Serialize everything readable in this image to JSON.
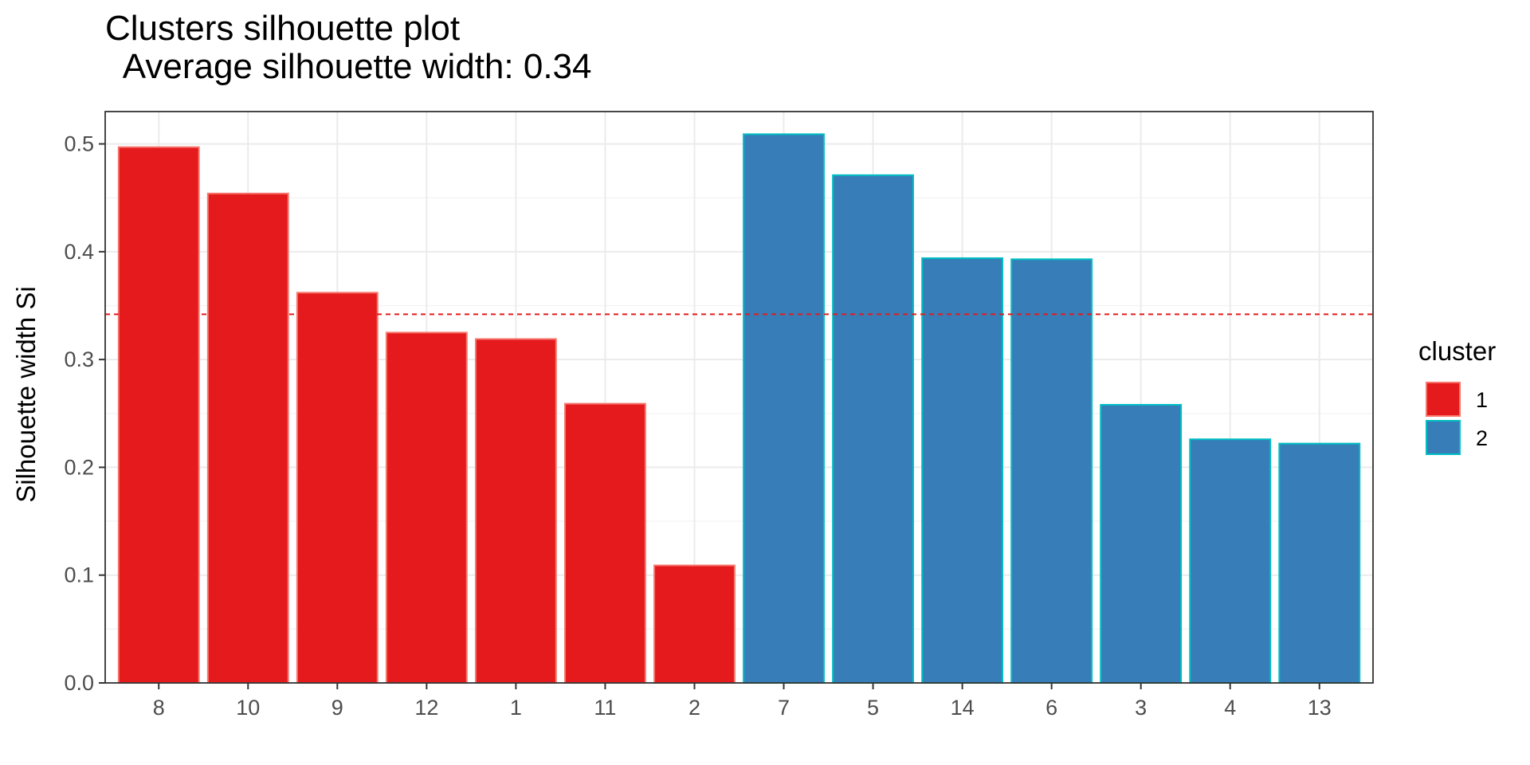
{
  "title": "Clusters silhouette plot",
  "subtitle": " Average silhouette width: 0.34",
  "chart_data": {
    "type": "bar",
    "title": "Clusters silhouette plot",
    "subtitle": " Average silhouette width: 0.34",
    "xlabel": "",
    "ylabel": "Silhouette width Si",
    "ylim": [
      0,
      0.53
    ],
    "yticks": [
      "0.0",
      "0.1",
      "0.2",
      "0.3",
      "0.4",
      "0.5"
    ],
    "grid": true,
    "categories": [
      "8",
      "10",
      "9",
      "12",
      "1",
      "11",
      "2",
      "7",
      "5",
      "14",
      "6",
      "3",
      "4",
      "13"
    ],
    "values": [
      0.497,
      0.454,
      0.362,
      0.325,
      0.319,
      0.259,
      0.109,
      0.509,
      0.471,
      0.394,
      0.393,
      0.258,
      0.226,
      0.222
    ],
    "cluster": [
      "1",
      "1",
      "1",
      "1",
      "1",
      "1",
      "1",
      "2",
      "2",
      "2",
      "2",
      "2",
      "2",
      "2"
    ],
    "reference_line": {
      "y": 0.342,
      "style": "dashed",
      "color": "#E41A1C"
    },
    "legend": {
      "title": "cluster",
      "position": "right",
      "entries": [
        {
          "label": "1",
          "fill": "#E41A1C",
          "stroke": "#F8766D"
        },
        {
          "label": "2",
          "fill": "#377EB8",
          "stroke": "#00BFC4"
        }
      ]
    }
  }
}
